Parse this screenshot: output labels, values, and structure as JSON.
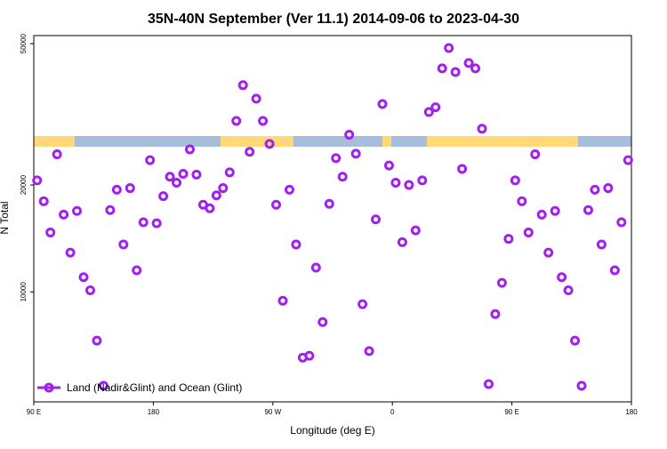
{
  "chart_data": {
    "type": "scatter",
    "title": "35N-40N September (Ver 11.1)   2014-09-06 to 2023-04-30",
    "x_label": "Longitude (deg E)",
    "y_label": "N Total",
    "xlim": [
      90,
      540
    ],
    "xticks": [
      {
        "value": 90,
        "label": "90 E"
      },
      {
        "value": 180,
        "label": "180"
      },
      {
        "value": 270,
        "label": "90 W"
      },
      {
        "value": 360,
        "label": "0"
      },
      {
        "value": 450,
        "label": "90 E"
      },
      {
        "value": 540,
        "label": "180"
      }
    ],
    "ylim": [
      4900,
      52700
    ],
    "yticks": [
      10000,
      20000,
      50000
    ],
    "log_y": true,
    "grid": false,
    "legend": "bottom-left",
    "series": [
      {
        "name": "Land (Nadir&Glint) and Ocean (Glint)",
        "color": "#a020f0",
        "x": [
          92.5,
          97.5,
          102.5,
          107.5,
          112.5,
          117.5,
          122.5,
          127.5,
          132.5,
          137.5,
          142.5,
          147.5,
          152.5,
          157.5,
          162.5,
          167.5,
          172.5,
          177.5,
          182.5,
          187.5,
          192.5,
          197.5,
          202.5,
          207.5,
          212.5,
          217.5,
          222.5,
          227.5,
          232.5,
          237.5,
          242.5,
          247.5,
          252.5,
          257.5,
          262.5,
          267.5,
          272.5,
          277.5,
          282.5,
          287.5,
          292.5,
          297.5,
          302.5,
          307.5,
          312.5,
          317.5,
          322.5,
          327.5,
          332.5,
          337.5,
          342.5,
          347.5,
          352.5,
          357.5,
          362.5,
          367.5,
          372.5,
          377.5,
          382.5,
          387.5,
          392.5,
          397.5,
          402.5,
          407.5,
          412.5,
          417.5,
          422.5,
          427.5,
          432.5,
          437.5,
          442.5,
          447.5,
          452.5,
          457.5,
          462.5,
          467.5,
          472.5,
          477.5,
          482.5,
          487.5,
          492.5,
          497.5,
          502.5,
          507.5,
          512.5,
          517.5,
          522.5,
          527.5,
          532.5,
          537.5
        ],
        "values": [
          20600,
          18000,
          14700,
          24400,
          16500,
          12900,
          16900,
          11000,
          10100,
          7290,
          5440,
          17000,
          19400,
          13600,
          19600,
          11500,
          15700,
          23500,
          15600,
          18600,
          21100,
          20300,
          21500,
          25200,
          21400,
          17600,
          17200,
          18700,
          19600,
          21700,
          30300,
          38200,
          24800,
          35000,
          30300,
          26100,
          17600,
          9440,
          19400,
          13600,
          6530,
          6610,
          11700,
          8220,
          17700,
          23800,
          21100,
          27700,
          24500,
          9230,
          6810,
          16000,
          33800,
          22700,
          20300,
          13800,
          20000,
          14900,
          20600,
          32100,
          33100,
          42600,
          48600,
          41600,
          22200,
          44100,
          42600,
          28800,
          5500,
          8660,
          10600,
          14100,
          20600,
          18000,
          14700,
          24400,
          16500,
          12900,
          16900,
          11000,
          10100,
          7290,
          5440,
          17000,
          19400,
          13600,
          19600,
          11500,
          15700,
          23500
        ]
      }
    ]
  }
}
